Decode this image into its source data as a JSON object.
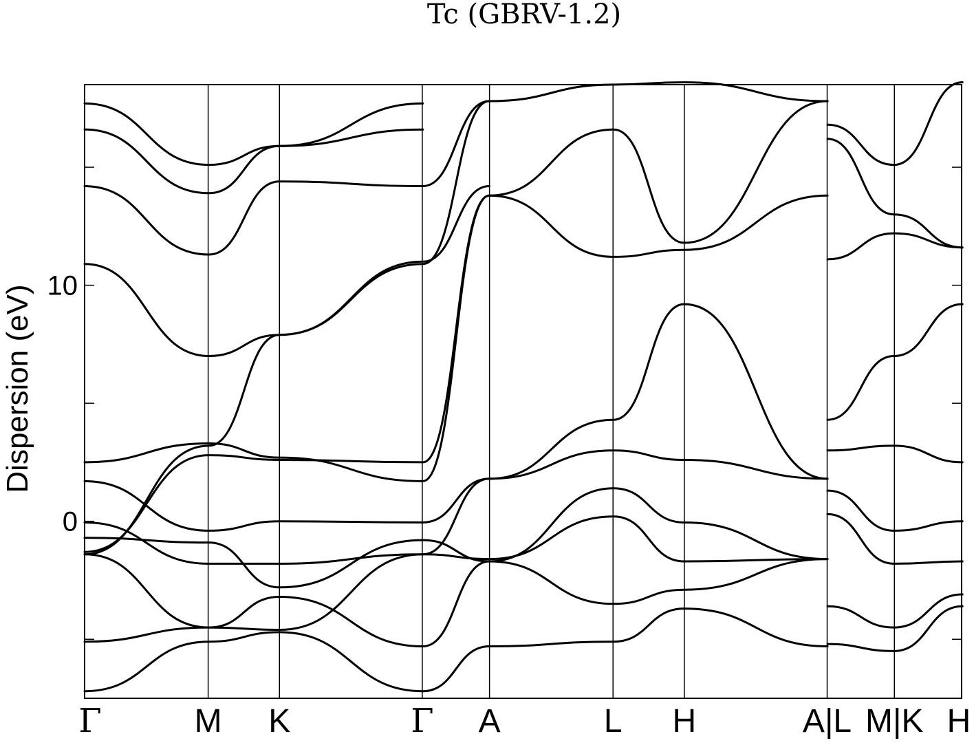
{
  "chart_data": {
    "type": "line",
    "title": "Tc (GBRV-1.2)",
    "ylabel": "Dispersion (eV)",
    "xlabel": "",
    "ylim": [
      -7.5,
      18.5
    ],
    "yticks": [
      -5,
      0,
      5,
      10,
      15
    ],
    "ytick_labels": [
      {
        "value": 0,
        "label": "0"
      },
      {
        "value": 10,
        "label": "10"
      }
    ],
    "grid": false,
    "legend": "none",
    "line_color": "#000000",
    "kpoints": [
      {
        "label": "Γ",
        "x": 0.0
      },
      {
        "label": "M",
        "x": 0.577
      },
      {
        "label": "K",
        "x": 0.91
      },
      {
        "label": "Γ",
        "x": 1.577
      },
      {
        "label": "A",
        "x": 1.891
      },
      {
        "label": "L",
        "x": 2.468
      },
      {
        "label": "H",
        "x": 2.801
      },
      {
        "label": "A|L",
        "x": 3.468
      },
      {
        "label": "M|K",
        "x": 3.782
      },
      {
        "label": "H",
        "x": 4.096
      }
    ],
    "series": [
      {
        "x": [
          0,
          0.58,
          0.91,
          1.58,
          1.89,
          2.47,
          2.8,
          3.47
        ],
        "y": [
          -7.2,
          -5.1,
          -4.7,
          -7.2,
          -5.3,
          -5.1,
          -3.7,
          -5.3
        ]
      },
      {
        "x": [
          0,
          0.58,
          0.91,
          1.58,
          1.89,
          2.47,
          2.8,
          3.47
        ],
        "y": [
          -5.1,
          -4.5,
          -3.2,
          -5.3,
          -1.7,
          -3.5,
          -2.9,
          -1.6
        ]
      },
      {
        "x": [
          0,
          0.58,
          0.91,
          1.58,
          1.89,
          2.47,
          2.8,
          3.47
        ],
        "y": [
          -1.4,
          -4.5,
          -4.6,
          -1.4,
          -1.6,
          0.2,
          -1.7,
          -1.6
        ]
      },
      {
        "x": [
          0,
          0.58,
          0.91,
          1.58,
          1.89,
          2.47,
          2.8,
          3.47
        ],
        "y": [
          -0.7,
          -0.9,
          -2.8,
          -0.8,
          -1.7,
          1.4,
          -0.05,
          -1.6
        ]
      },
      {
        "x": [
          0,
          0.58,
          0.91,
          1.58,
          1.89,
          2.47,
          2.8,
          3.47
        ],
        "y": [
          -0.05,
          -1.8,
          -1.8,
          -1.4,
          1.8,
          3.0,
          2.6,
          1.8
        ]
      },
      {
        "x": [
          0,
          0.58,
          0.91,
          1.58,
          1.89,
          2.47,
          2.8,
          3.47
        ],
        "y": [
          1.7,
          -0.4,
          0.0,
          -0.05,
          1.8,
          4.3,
          9.2,
          1.8
        ]
      },
      {
        "x": [
          0,
          0.58,
          0.91,
          1.58,
          1.89,
          2.47,
          2.8,
          3.47
        ],
        "y": [
          2.5,
          3.3,
          2.7,
          1.7,
          13.8,
          11.2,
          11.5,
          13.8
        ]
      },
      {
        "x": [
          0,
          0.58,
          0.91,
          1.58,
          1.89,
          2.47,
          2.8,
          3.47
        ],
        "y": [
          -1.3,
          2.8,
          2.6,
          2.5,
          13.8,
          16.6,
          11.8,
          17.8
        ]
      },
      {
        "x": [
          0,
          0.58,
          0.91,
          1.58,
          1.89,
          2.47,
          2.8,
          3.47
        ],
        "y": [
          -1.4,
          3.2,
          7.9,
          10.9,
          17.8,
          18.5,
          18.6,
          17.8
        ]
      },
      {
        "x": [
          0,
          0.58,
          0.91,
          1.58,
          1.89
        ],
        "y": [
          10.9,
          7.0,
          7.9,
          11.0,
          14.2
        ]
      },
      {
        "x": [
          0,
          0.58,
          0.91,
          1.58,
          1.89
        ],
        "y": [
          14.2,
          11.3,
          14.4,
          14.2,
          17.8
        ]
      },
      {
        "x": [
          0,
          0.58,
          0.91,
          1.58
        ],
        "y": [
          16.6,
          13.9,
          15.9,
          16.6
        ]
      },
      {
        "x": [
          0,
          0.58,
          0.91,
          1.58
        ],
        "y": [
          17.7,
          15.1,
          15.9,
          17.7
        ]
      },
      {
        "x": [
          3.47,
          3.78,
          4.1
        ],
        "y": [
          -5.2,
          -5.5,
          -3.6
        ]
      },
      {
        "x": [
          3.47,
          3.78,
          4.1
        ],
        "y": [
          -3.6,
          -4.5,
          -3.1
        ]
      },
      {
        "x": [
          3.47,
          3.78,
          4.1
        ],
        "y": [
          0.3,
          -1.8,
          -1.7
        ]
      },
      {
        "x": [
          3.47,
          3.78,
          4.1
        ],
        "y": [
          1.3,
          -0.4,
          0.0
        ]
      },
      {
        "x": [
          3.47,
          3.78,
          4.1
        ],
        "y": [
          3.0,
          3.2,
          2.5
        ]
      },
      {
        "x": [
          3.47,
          3.78,
          4.1
        ],
        "y": [
          4.3,
          7.0,
          9.2
        ]
      },
      {
        "x": [
          3.47,
          3.78,
          4.1
        ],
        "y": [
          11.1,
          12.2,
          11.6
        ]
      },
      {
        "x": [
          3.47,
          3.78,
          4.1
        ],
        "y": [
          16.2,
          13.0,
          11.6
        ]
      },
      {
        "x": [
          3.47,
          3.78,
          4.1
        ],
        "y": [
          16.8,
          15.1,
          18.6
        ]
      }
    ]
  }
}
